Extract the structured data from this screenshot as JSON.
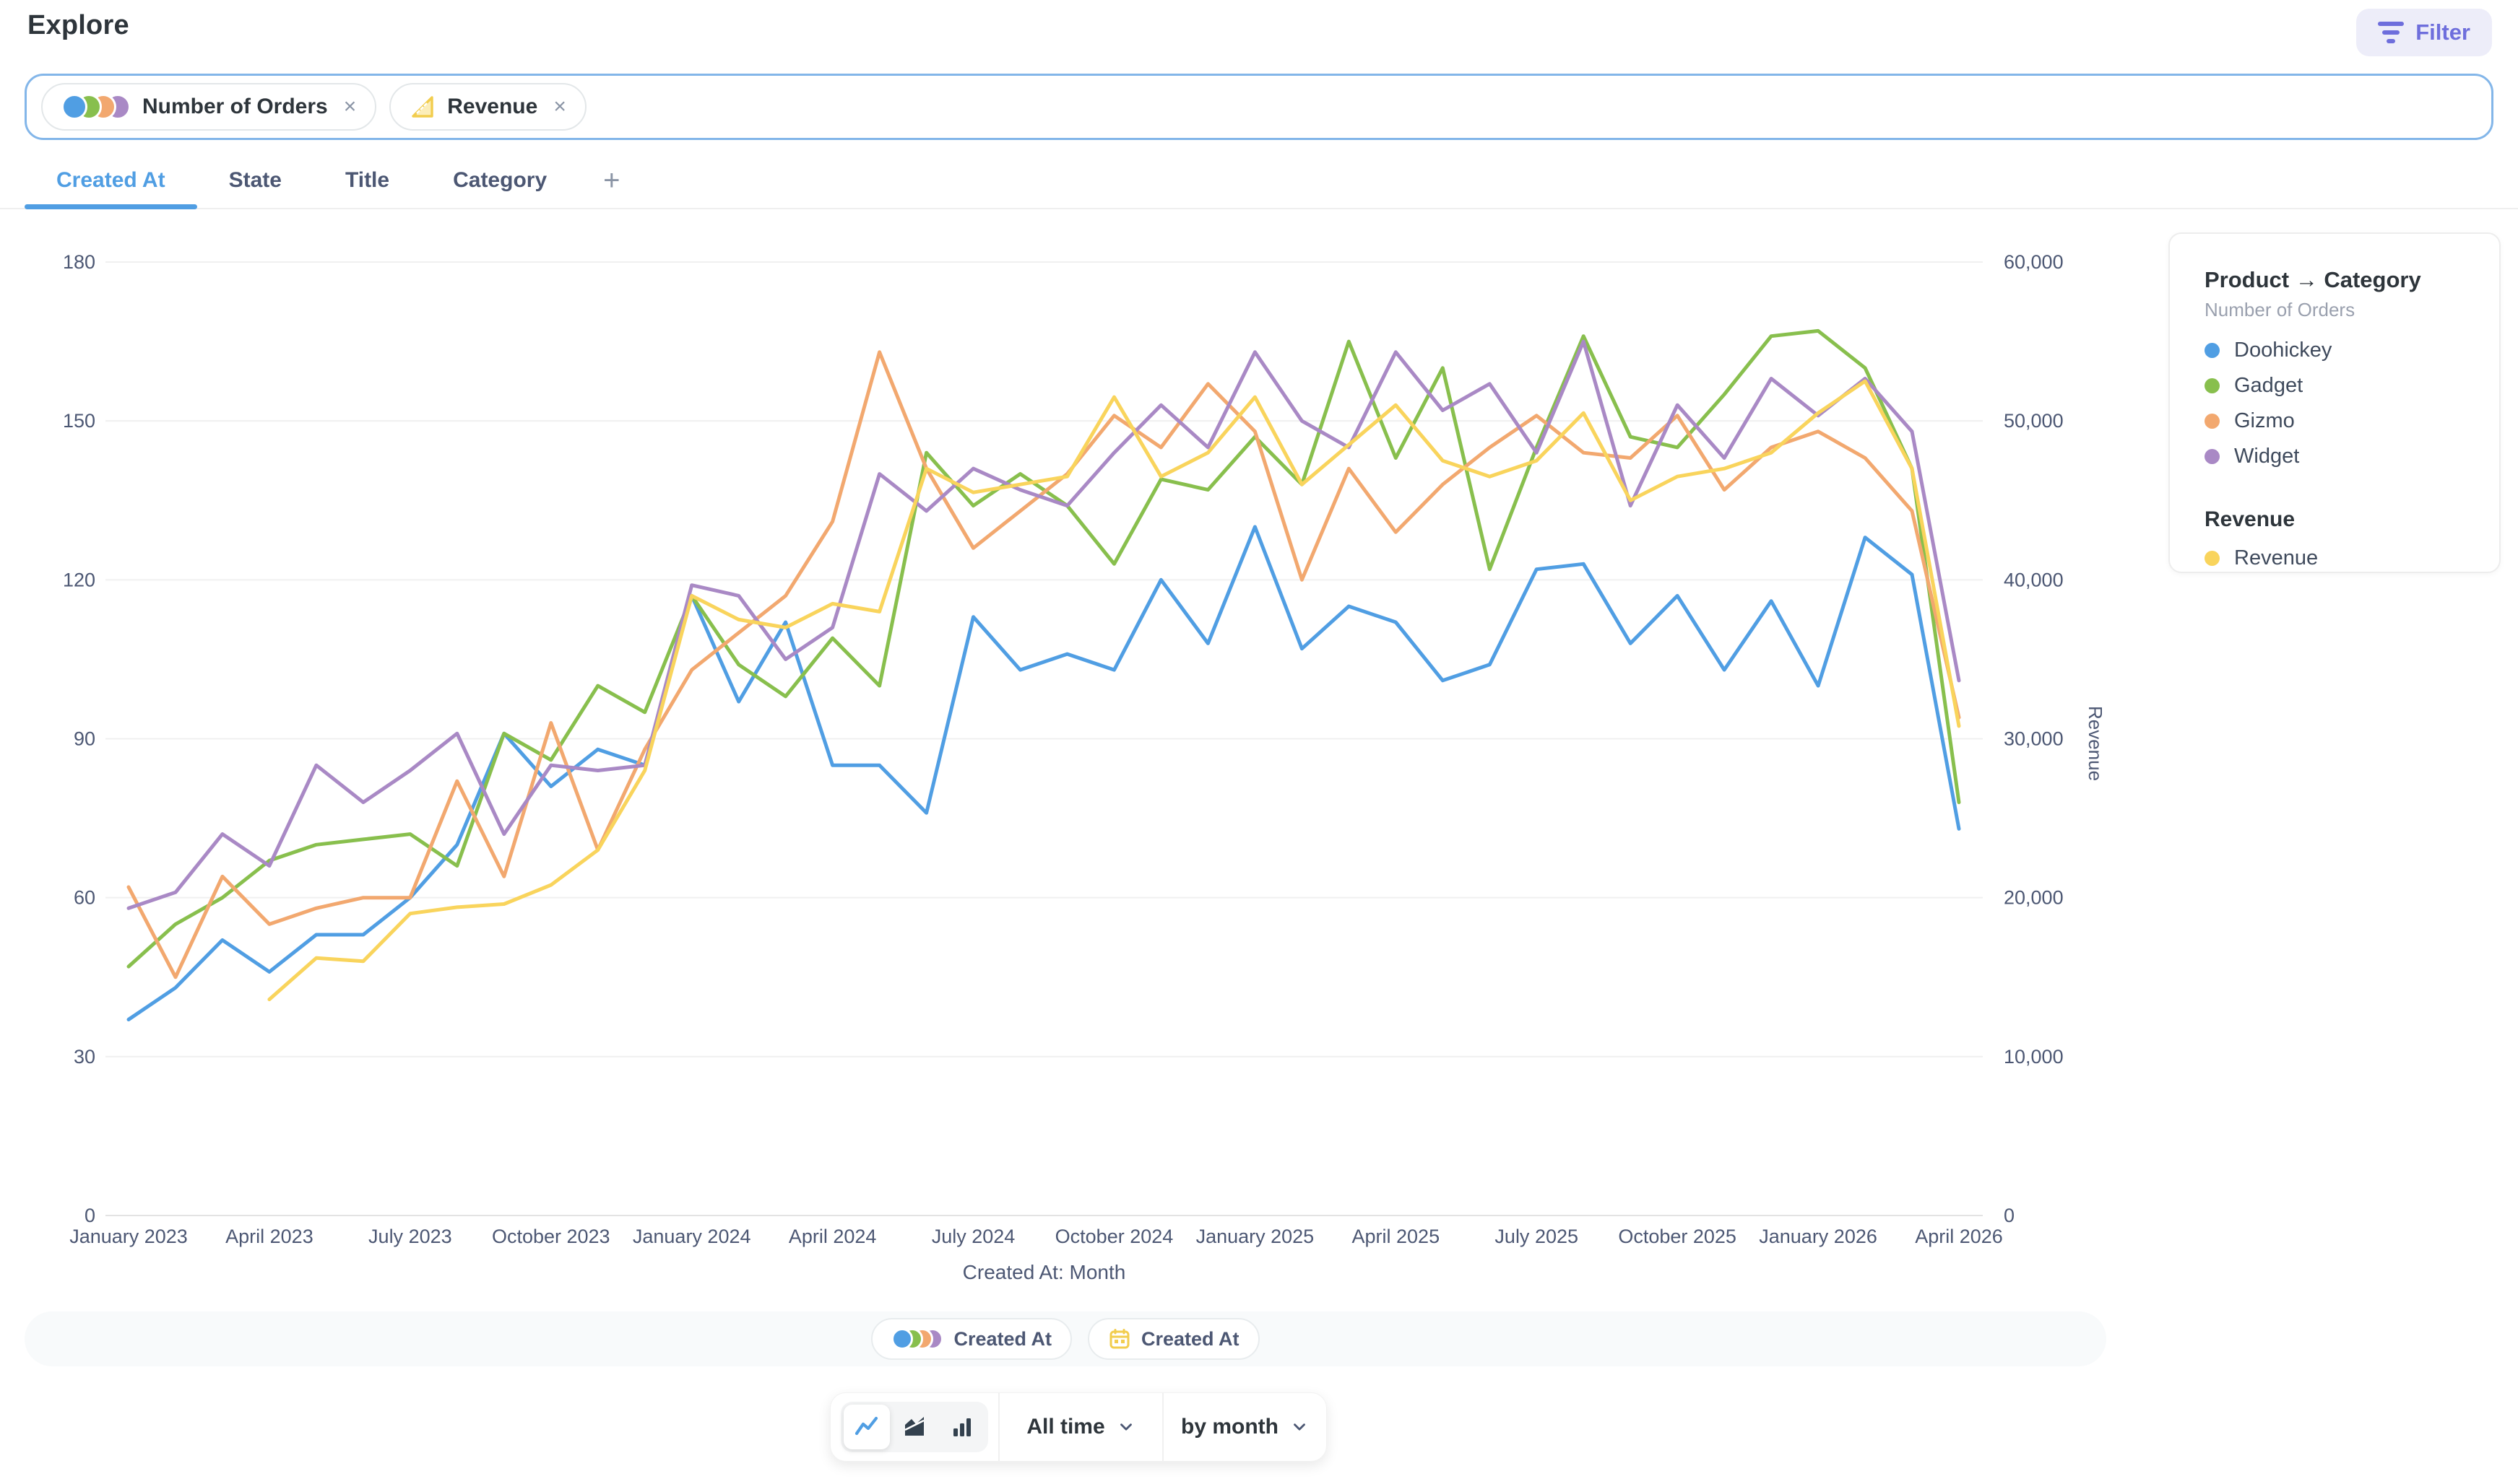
{
  "header": {
    "title": "Explore",
    "filter_label": "Filter"
  },
  "metric_bar": {
    "pills": [
      {
        "label": "Number of Orders",
        "icon": "category-circles",
        "remove_label": "×"
      },
      {
        "label": "Revenue",
        "icon": "ruler-triangle",
        "remove_label": "×"
      }
    ]
  },
  "tabs": {
    "items": [
      {
        "label": "Created At",
        "active": true
      },
      {
        "label": "State",
        "active": false
      },
      {
        "label": "Title",
        "active": false
      },
      {
        "label": "Category",
        "active": false
      }
    ],
    "add_label": "+"
  },
  "chart_data": {
    "type": "line",
    "x": [
      "January 2023",
      "February 2023",
      "March 2023",
      "April 2023",
      "May 2023",
      "June 2023",
      "July 2023",
      "August 2023",
      "September 2023",
      "October 2023",
      "November 2023",
      "December 2023",
      "January 2024",
      "February 2024",
      "March 2024",
      "April 2024",
      "May 2024",
      "June 2024",
      "July 2024",
      "August 2024",
      "September 2024",
      "October 2024",
      "November 2024",
      "December 2024",
      "January 2025",
      "February 2025",
      "March 2025",
      "April 2025",
      "May 2025",
      "June 2025",
      "July 2025",
      "August 2025",
      "September 2025",
      "October 2025",
      "November 2025",
      "December 2025",
      "January 2026",
      "February 2026",
      "March 2026",
      "April 2026"
    ],
    "x_tick_labels": [
      "January 2023",
      "April 2023",
      "July 2023",
      "October 2023",
      "January 2024",
      "April 2024",
      "July 2024",
      "October 2024",
      "January 2025",
      "April 2025",
      "July 2025",
      "October 2025",
      "January 2026",
      "April 2026"
    ],
    "xlabel": "Created At: Month",
    "left_axis": {
      "ticks": [
        0,
        30,
        60,
        90,
        120,
        150,
        180
      ],
      "range": [
        0,
        180
      ]
    },
    "right_axis": {
      "label": "Revenue",
      "ticks": [
        0,
        10000,
        20000,
        30000,
        40000,
        50000,
        60000
      ],
      "range": [
        0,
        60000
      ]
    },
    "grid": true,
    "legend_position": "right",
    "series": [
      {
        "name": "Doohickey",
        "color": "#509EE3",
        "axis": "left",
        "values": [
          37,
          43,
          52,
          46,
          53,
          53,
          60,
          70,
          91,
          81,
          88,
          85,
          117,
          97,
          112,
          85,
          85,
          76,
          113,
          103,
          106,
          103,
          120,
          108,
          130,
          107,
          115,
          112,
          101,
          104,
          122,
          123,
          108,
          117,
          103,
          116,
          100,
          128,
          121,
          73
        ]
      },
      {
        "name": "Gadget",
        "color": "#88BF4D",
        "axis": "left",
        "values": [
          47,
          55,
          60,
          67,
          70,
          71,
          72,
          66,
          91,
          86,
          100,
          95,
          117,
          104,
          98,
          109,
          100,
          144,
          134,
          140,
          134,
          123,
          139,
          137,
          147,
          138,
          165,
          143,
          160,
          122,
          145,
          166,
          147,
          145,
          155,
          166,
          167,
          160,
          141,
          78
        ]
      },
      {
        "name": "Gizmo",
        "color": "#F2A86F",
        "axis": "left",
        "values": [
          62,
          45,
          64,
          55,
          58,
          60,
          60,
          82,
          64,
          93,
          69,
          88,
          103,
          110,
          117,
          131,
          163,
          141,
          126,
          133,
          140,
          151,
          145,
          157,
          148,
          120,
          141,
          129,
          138,
          145,
          151,
          144,
          143,
          151,
          137,
          145,
          148,
          143,
          133,
          94
        ]
      },
      {
        "name": "Widget",
        "color": "#A989C5",
        "axis": "left",
        "values": [
          58,
          61,
          72,
          66,
          85,
          78,
          84,
          91,
          72,
          85,
          84,
          85,
          119,
          117,
          105,
          111,
          140,
          133,
          141,
          137,
          134,
          144,
          153,
          145,
          163,
          150,
          145,
          163,
          152,
          157,
          144,
          165,
          134,
          153,
          143,
          158,
          151,
          158,
          148,
          101
        ]
      },
      {
        "name": "Revenue",
        "color": "#F9D45C",
        "axis": "right",
        "values": [
          null,
          null,
          null,
          13600,
          16200,
          16000,
          19000,
          19400,
          19600,
          20800,
          23000,
          28000,
          39000,
          37500,
          37000,
          38500,
          38000,
          47000,
          45500,
          46000,
          46500,
          51500,
          46500,
          48000,
          51500,
          46000,
          48500,
          51000,
          47500,
          46500,
          47500,
          50500,
          45000,
          46500,
          47000,
          48000,
          50500,
          52500,
          47000,
          30800
        ]
      }
    ],
    "legend": {
      "title": "Product → Category",
      "subtitle": "Number of Orders",
      "items": [
        {
          "label": "Doohickey",
          "color": "#509EE3"
        },
        {
          "label": "Gadget",
          "color": "#88BF4D"
        },
        {
          "label": "Gizmo",
          "color": "#F2A86F"
        },
        {
          "label": "Widget",
          "color": "#A989C5"
        }
      ],
      "revenue_title": "Revenue",
      "revenue_items": [
        {
          "label": "Revenue",
          "color": "#F9D45C"
        }
      ]
    }
  },
  "footer_chips": [
    {
      "label": "Created At",
      "icon": "category-circles"
    },
    {
      "label": "Created At",
      "icon": "calendar"
    }
  ],
  "toolbar": {
    "chart_types": [
      {
        "name": "line",
        "active": true
      },
      {
        "name": "area",
        "active": false
      },
      {
        "name": "bar",
        "active": false
      }
    ],
    "time_filter": "All time",
    "granularity": "by month"
  },
  "colors": {
    "brand_blue": "#509EE3",
    "green": "#88BF4D",
    "orange": "#F2A86F",
    "purple": "#A989C5",
    "yellow": "#F9D45C",
    "filter_accent": "#6E6EDC",
    "text_dark": "#2E353B",
    "text_medium": "#4C5773",
    "gridline": "#F0F0F0"
  }
}
